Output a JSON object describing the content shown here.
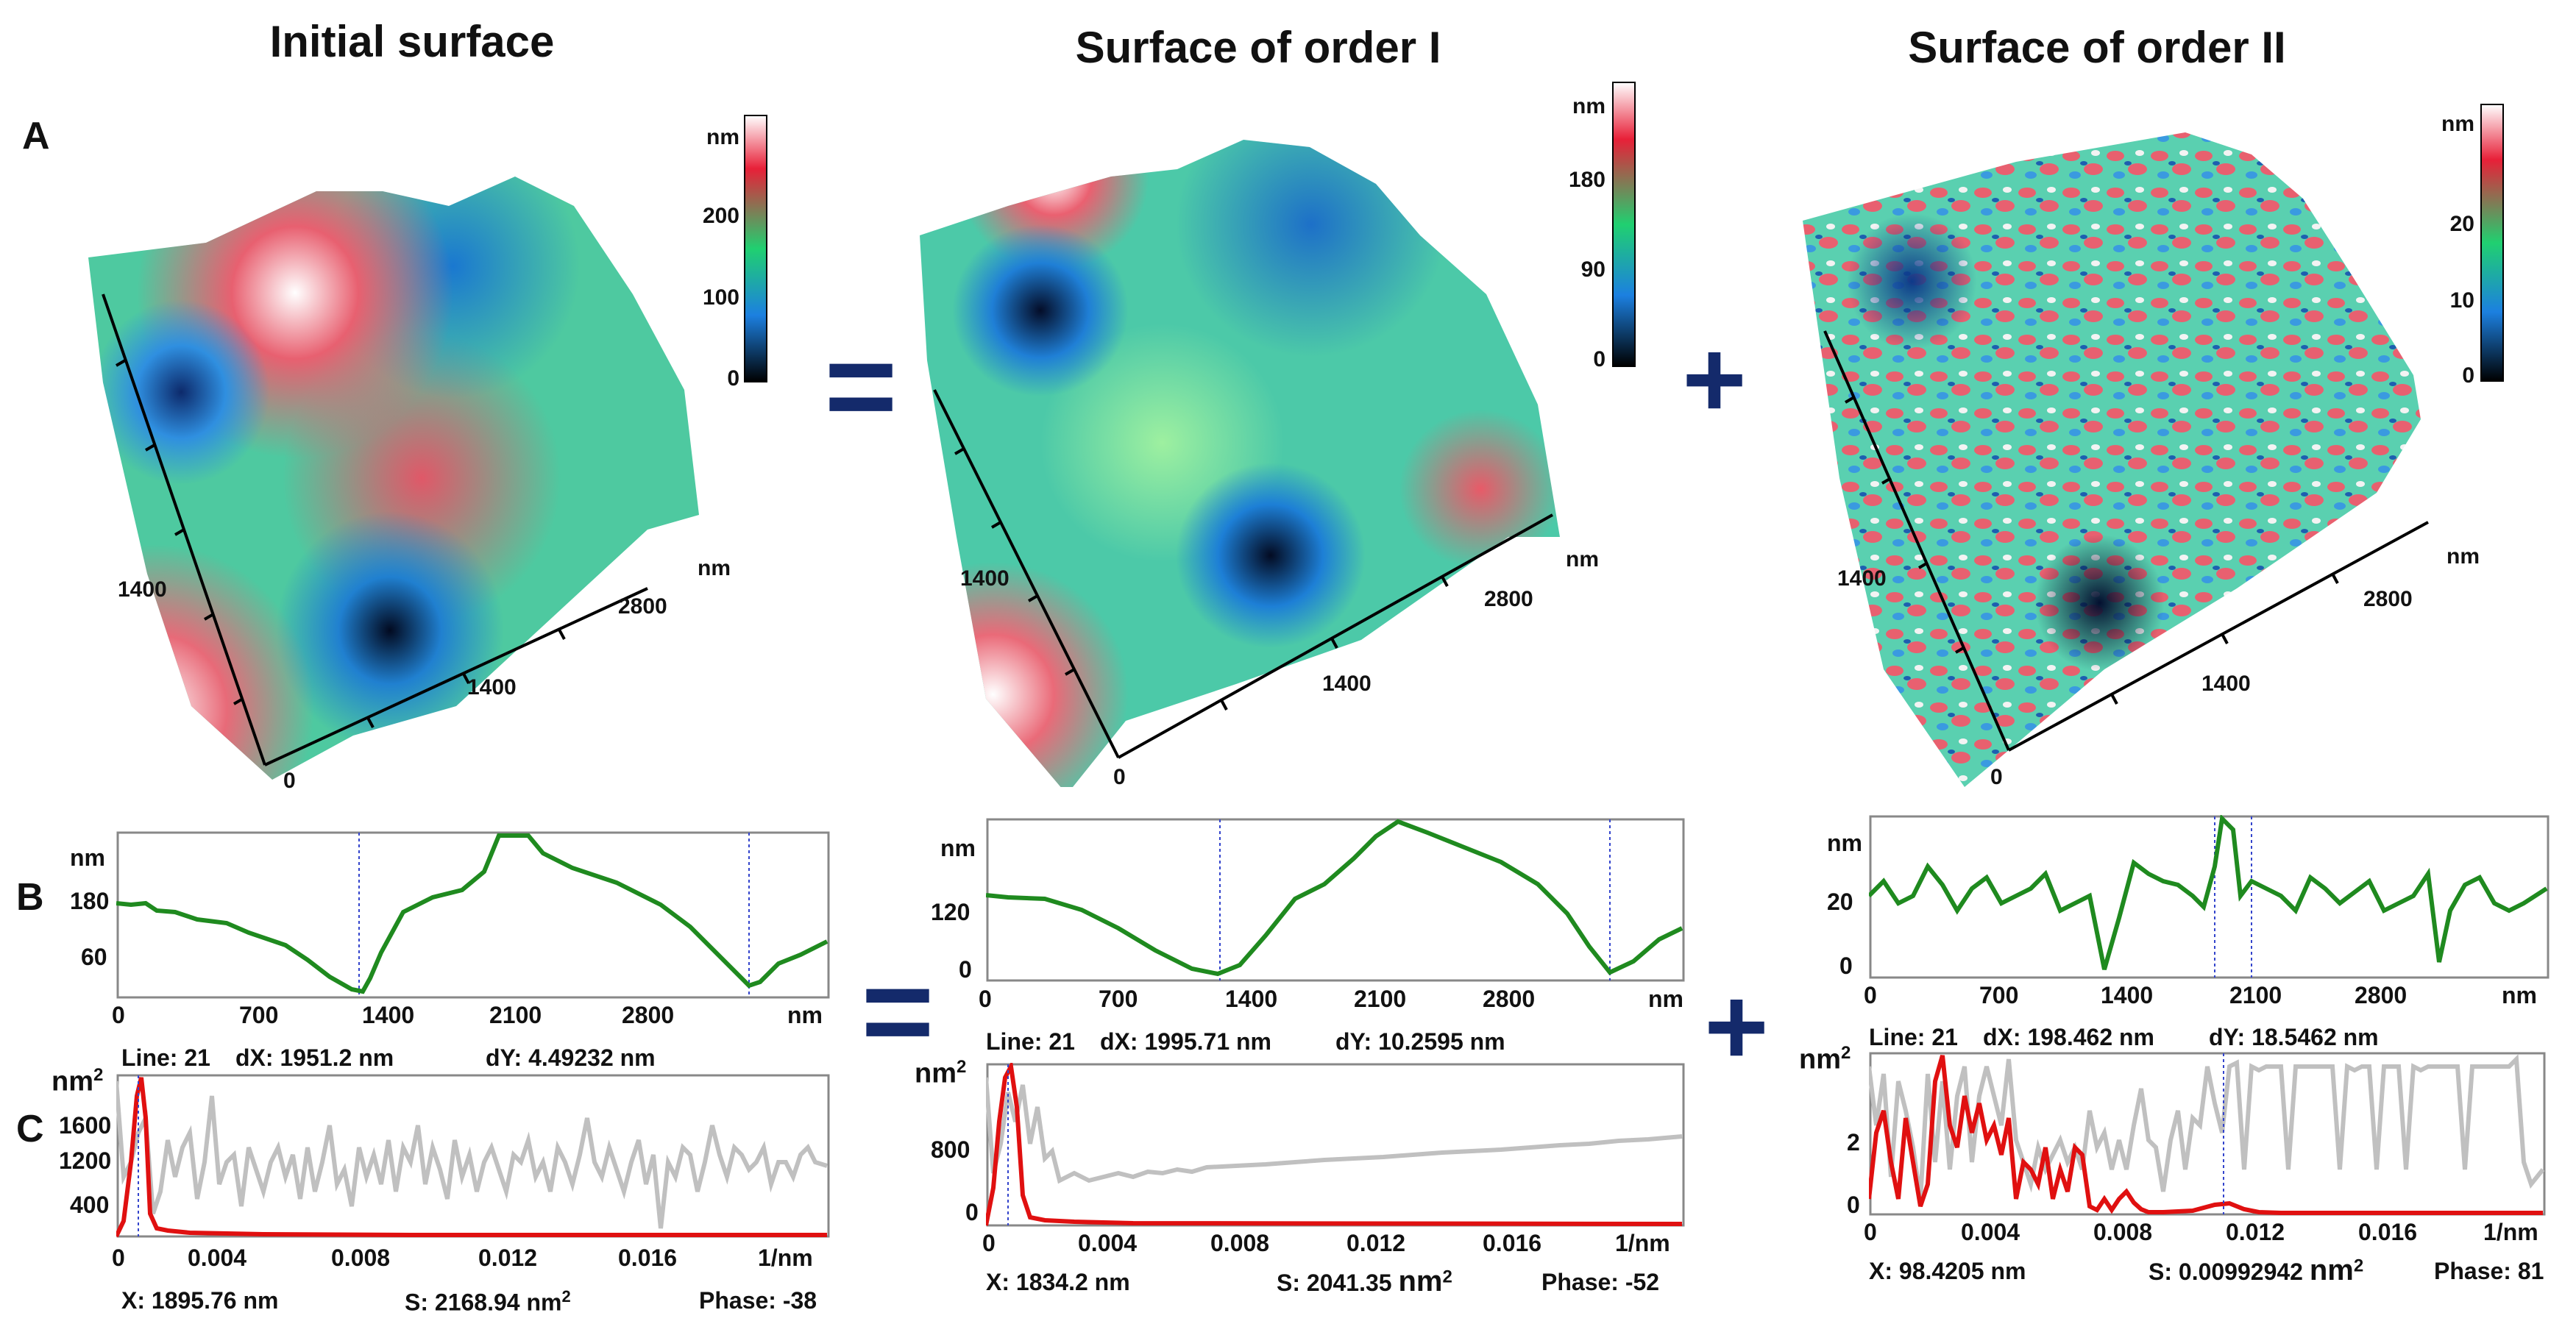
{
  "titles": [
    "Initial surface",
    "Surface of order I",
    "Surface of order II"
  ],
  "row_labels": {
    "a": "A",
    "b": "B",
    "c": "C"
  },
  "operators": {
    "equals": "=",
    "plus": "+"
  },
  "colors": {
    "profile": "#1f8a1f",
    "spectrum_gray": "#c0c0c0",
    "spectrum_red": "#e01010",
    "operator": "#142a6b",
    "cursor": "#3344cc"
  },
  "panels": [
    {
      "colorbar": {
        "unit": "nm",
        "ticks": [
          "200",
          "100",
          "0"
        ]
      },
      "axes_3d": {
        "y_tick": "1400",
        "x_ticks": [
          "1400",
          "2800"
        ],
        "origin": "0",
        "unit": "nm"
      },
      "profile": {
        "y_unit": "nm",
        "y_ticks": [
          "180",
          "60"
        ],
        "x_ticks": [
          "0",
          "700",
          "1400",
          "2100",
          "2800"
        ],
        "x_unit": "nm",
        "info": {
          "line": "Line: 21",
          "dx": "dX: 1951.2 nm",
          "dy": "dY: 4.49232 nm"
        }
      },
      "spectrum": {
        "y_unit": "nm",
        "y_unit_sup": "2",
        "y_ticks": [
          "1600",
          "1200",
          "400"
        ],
        "x_ticks": [
          "0",
          "0.004",
          "0.008",
          "0.012",
          "0.016"
        ],
        "x_unit": "1/nm",
        "info": {
          "x": "X: 1895.76 nm",
          "s": "S: 2168.94 nm",
          "s_sup": "2",
          "phase": "Phase: -38"
        }
      }
    },
    {
      "colorbar": {
        "unit": "nm",
        "ticks": [
          "180",
          "90",
          "0"
        ]
      },
      "axes_3d": {
        "y_tick": "1400",
        "x_ticks": [
          "1400",
          "2800"
        ],
        "origin": "0",
        "unit": "nm"
      },
      "profile": {
        "y_unit": "nm",
        "y_ticks": [
          "120",
          "0"
        ],
        "x_ticks": [
          "0",
          "700",
          "1400",
          "2100",
          "2800"
        ],
        "x_unit": "nm",
        "info": {
          "line": "Line: 21",
          "dx": "dX: 1995.71 nm",
          "dy": "dY: 10.2595 nm"
        }
      },
      "spectrum": {
        "y_unit": "nm",
        "y_unit_sup": "2",
        "y_ticks": [
          "800",
          "0"
        ],
        "x_ticks": [
          "0",
          "0.004",
          "0.008",
          "0.012",
          "0.016"
        ],
        "x_unit": "1/nm",
        "info": {
          "x": "X: 1834.2 nm",
          "s": "S: 2041.35",
          "s_unit": "nm",
          "s_sup": "2",
          "phase": "Phase: -52"
        }
      }
    },
    {
      "colorbar": {
        "unit": "nm",
        "ticks": [
          "20",
          "10",
          "0"
        ]
      },
      "axes_3d": {
        "y_tick": "1400",
        "x_ticks": [
          "1400",
          "2800"
        ],
        "origin": "0",
        "unit": "nm"
      },
      "profile": {
        "y_unit": "nm",
        "y_ticks": [
          "20",
          "0"
        ],
        "x_ticks": [
          "0",
          "700",
          "1400",
          "2100",
          "2800"
        ],
        "x_unit": "nm",
        "info": {
          "line": "Line: 21",
          "dx": "dX: 198.462 nm",
          "dy": "dY: 18.5462 nm"
        }
      },
      "spectrum": {
        "y_unit": "nm",
        "y_unit_sup": "2",
        "y_ticks": [
          "2",
          "0"
        ],
        "x_ticks": [
          "0",
          "0.004",
          "0.008",
          "0.012",
          "0.016"
        ],
        "x_unit": "1/nm",
        "info": {
          "x": "X: 98.4205 nm",
          "s": "S: 0.00992942",
          "s_unit": "nm",
          "s_sup": "2",
          "phase": "Phase: 81"
        }
      }
    }
  ]
}
